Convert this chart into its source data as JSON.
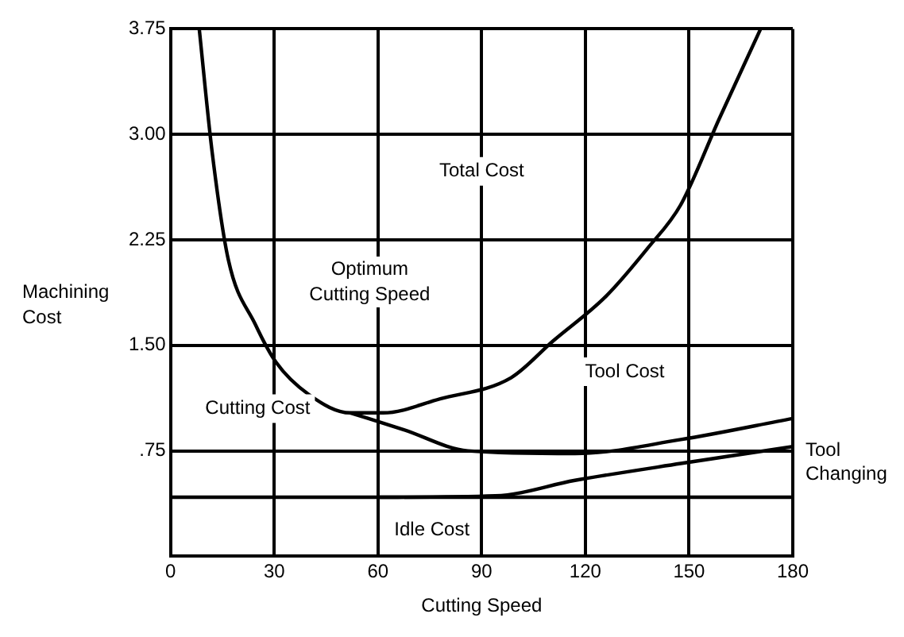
{
  "chart_data": {
    "type": "line",
    "xlabel": "Cutting Speed",
    "ylabel": "Machining Cost",
    "xlim": [
      0,
      180
    ],
    "xticks": [
      0,
      30,
      60,
      90,
      120,
      150,
      180
    ],
    "ylim": [
      0,
      3.75
    ],
    "yticks": [
      {
        "value": 0.75,
        "label": ".75"
      },
      {
        "value": 1.5,
        "label": "1.50"
      },
      {
        "value": 2.25,
        "label": "2.25"
      },
      {
        "value": 3,
        "label": "3.00"
      },
      {
        "value": 3.75,
        "label": "3.75"
      }
    ],
    "grid": true,
    "legend": false,
    "marker": "none",
    "line_style": "solid",
    "series": [
      {
        "color": "#000000",
        "x": [
          8.3,
          12,
          16.7,
          24.5,
          30.5,
          40,
          52,
          61.5,
          78,
          98.5,
          110.6,
          126,
          138,
          147.6,
          158.7,
          170.7
        ],
        "values": [
          3.75,
          2.88,
          2.11,
          1.65,
          1.38,
          1.15,
          1.02,
          1.02,
          1.12,
          1.27,
          1.53,
          1.85,
          2.19,
          2.5,
          3.11,
          3.75
        ]
      },
      {
        "color": "#000000",
        "x": [
          52,
          67.5,
          86,
          117,
          147.6,
          180
        ],
        "values": [
          1.02,
          0.9,
          0.75,
          0.73,
          0.83,
          0.98
        ]
      },
      {
        "color": "#000000",
        "x": [
          60,
          94,
          117,
          147.6,
          180
        ],
        "values": [
          0.42,
          0.43,
          0.54,
          0.66,
          0.78
        ]
      },
      {
        "color": "#000000",
        "x": [
          0,
          180
        ],
        "values": [
          0.42,
          0.42
        ]
      }
    ],
    "annotations": [
      "Total Cost",
      "Optimum Cutting Speed",
      "Tool Cost",
      "Cutting Cost",
      "Idle Cost",
      "Tool Changing"
    ]
  }
}
